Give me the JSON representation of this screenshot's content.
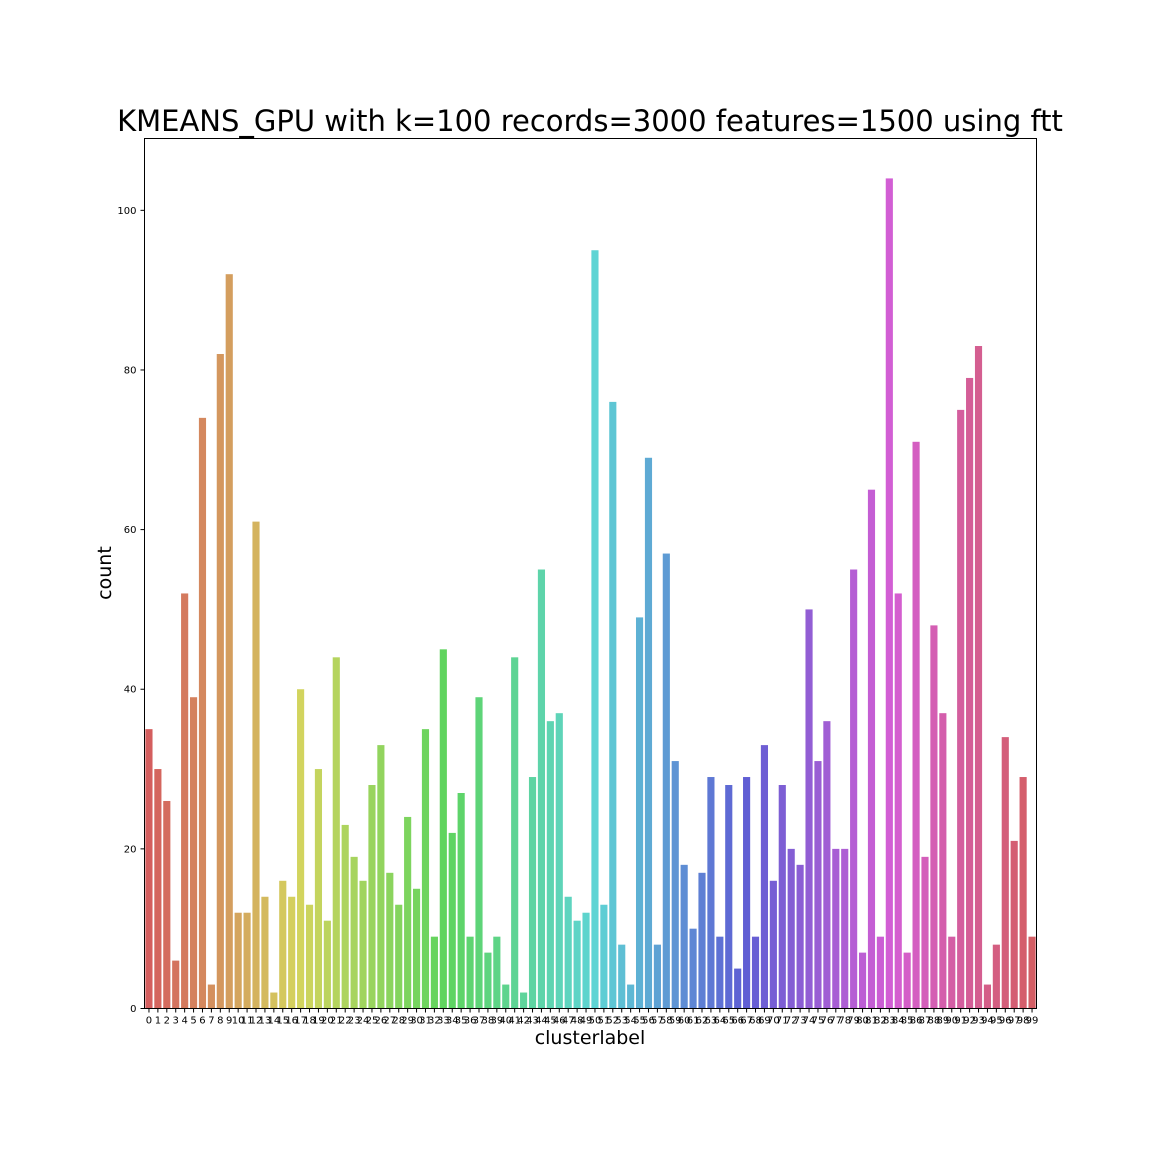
{
  "chart_data": {
    "type": "bar",
    "title": "KMEANS_GPU with k=100 records=3000 features=1500 using ftt",
    "xlabel": "clusterlabel",
    "ylabel": "count",
    "ylim": [
      0,
      109
    ],
    "yticks": [
      0,
      20,
      40,
      60,
      80,
      100
    ],
    "grid": false,
    "legend": "none",
    "categories": [
      "0",
      "1",
      "2",
      "3",
      "4",
      "5",
      "6",
      "7",
      "8",
      "9",
      "10",
      "11",
      "12",
      "13",
      "14",
      "15",
      "16",
      "17",
      "18",
      "19",
      "20",
      "21",
      "22",
      "23",
      "24",
      "25",
      "26",
      "27",
      "28",
      "29",
      "30",
      "31",
      "32",
      "33",
      "34",
      "35",
      "36",
      "37",
      "38",
      "39",
      "40",
      "41",
      "42",
      "43",
      "44",
      "45",
      "46",
      "47",
      "48",
      "49",
      "50",
      "51",
      "52",
      "53",
      "54",
      "55",
      "56",
      "57",
      "58",
      "59",
      "60",
      "61",
      "62",
      "63",
      "64",
      "65",
      "66",
      "67",
      "68",
      "69",
      "70",
      "71",
      "72",
      "73",
      "74",
      "75",
      "76",
      "77",
      "78",
      "79",
      "80",
      "81",
      "82",
      "83",
      "84",
      "85",
      "86",
      "87",
      "88",
      "89",
      "90",
      "91",
      "92",
      "93",
      "94",
      "95",
      "96",
      "97",
      "98",
      "99"
    ],
    "values": [
      35,
      30,
      26,
      6,
      52,
      39,
      74,
      3,
      82,
      92,
      12,
      12,
      61,
      14,
      2,
      16,
      14,
      40,
      13,
      30,
      11,
      44,
      23,
      19,
      16,
      28,
      33,
      17,
      13,
      24,
      15,
      35,
      9,
      45,
      22,
      27,
      9,
      39,
      7,
      9,
      3,
      44,
      2,
      29,
      55,
      36,
      37,
      14,
      11,
      12,
      95,
      13,
      76,
      8,
      3,
      49,
      69,
      8,
      57,
      31,
      18,
      10,
      17,
      29,
      9,
      28,
      5,
      29,
      9,
      33,
      16,
      28,
      20,
      18,
      50,
      31,
      36,
      20,
      20,
      55,
      7,
      65,
      9,
      104,
      52,
      7,
      71,
      19,
      48,
      37,
      9,
      75,
      79,
      83,
      3,
      8,
      34,
      21,
      29,
      9
    ]
  }
}
